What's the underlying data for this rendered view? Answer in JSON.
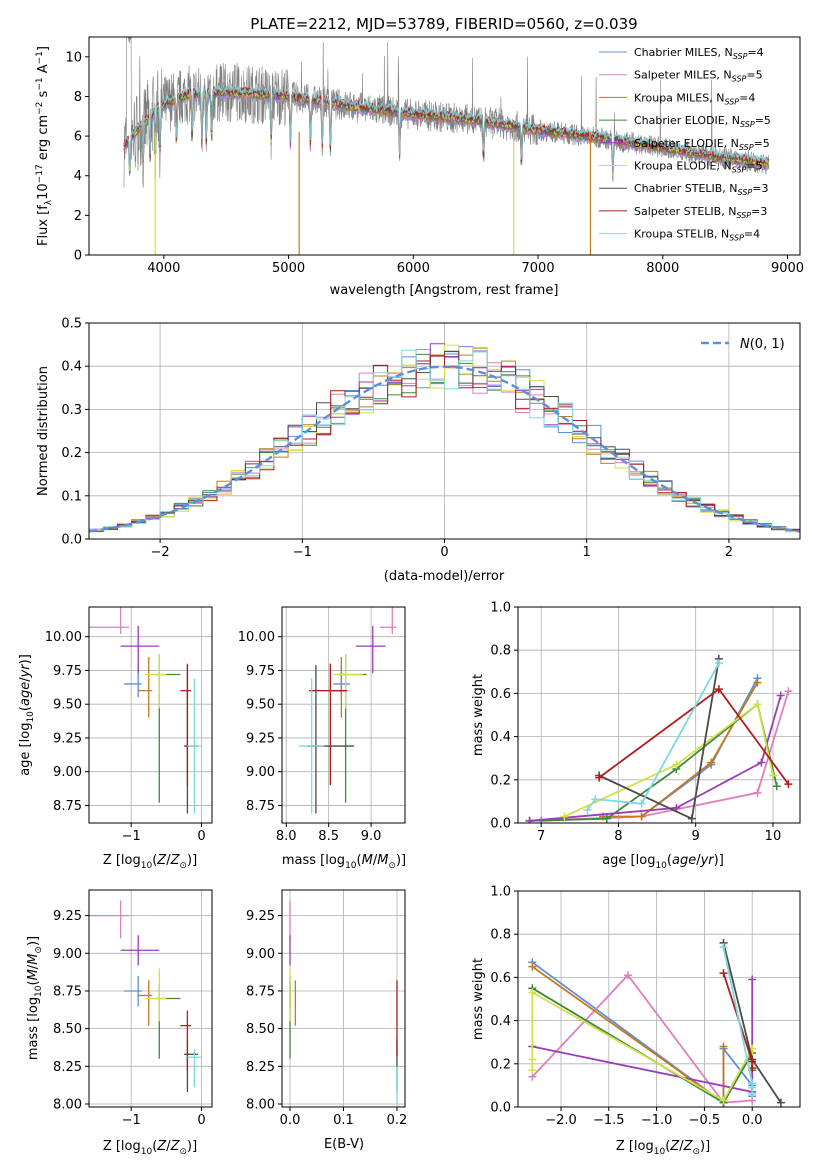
{
  "colors": {
    "Chabrier MILES": "#5b8fe0",
    "Salpeter MILES": "#e07fc0",
    "Kroupa MILES": "#c87a1a",
    "Chabrier ELODIE": "#3d8a3d",
    "Salpeter ELODIE": "#9a3db8",
    "Kroupa ELODIE": "#d4e04a",
    "Chabrier STELIB": "#4a4a4a",
    "Salpeter STELIB": "#b01c1c",
    "Kroupa STELIB": "#7fd8e0",
    "data": "#808080",
    "gauss": "#5b8fe0",
    "errs": [
      "#5b8fe0",
      "#e07fc0",
      "#c87a1a",
      "#3d8a3d",
      "#9a3db8",
      "#d4e04a",
      "#4a4a4a",
      "#b01c1c",
      "#7fd8e0"
    ]
  },
  "chart_data": [
    {
      "type": "line",
      "title": "PLATE=2212, MJD=53789, FIBERID=0560, z=0.039",
      "xlabel": "wavelength [Angstrom, rest frame]",
      "ylabel_tex": "Flux [f_λ 10^-17 erg cm^-2 s^-1 A^-1]",
      "xlim": [
        3400,
        9100
      ],
      "ylim": [
        0,
        11
      ],
      "xticks": [
        4000,
        5000,
        6000,
        7000,
        8000,
        9000
      ],
      "yticks": [
        0,
        2,
        4,
        6,
        8,
        10
      ],
      "legend": [
        {
          "model": "Chabrier MILES",
          "nssp": "4"
        },
        {
          "model": "Salpeter MILES",
          "nssp": "5"
        },
        {
          "model": "Kroupa MILES",
          "nssp": "4"
        },
        {
          "model": "Chabrier ELODIE",
          "nssp": "5"
        },
        {
          "model": "Salpeter ELODIE",
          "nssp": "5"
        },
        {
          "model": "Kroupa ELODIE",
          "nssp": "5"
        },
        {
          "model": "Chabrier STELIB",
          "nssp": "3"
        },
        {
          "model": "Salpeter STELIB",
          "nssp": "3"
        },
        {
          "model": "Kroupa STELIB",
          "nssp": "4"
        }
      ],
      "legend_pos": "upper-right",
      "continuum": [
        [
          3680,
          5.5
        ],
        [
          3800,
          6.4
        ],
        [
          4000,
          7.6
        ],
        [
          4200,
          8.1
        ],
        [
          4500,
          8.2
        ],
        [
          5000,
          8.0
        ],
        [
          5500,
          7.5
        ],
        [
          6000,
          7.1
        ],
        [
          6500,
          6.8
        ],
        [
          7000,
          6.3
        ],
        [
          7500,
          5.9
        ],
        [
          8000,
          5.4
        ],
        [
          8500,
          4.9
        ],
        [
          8850,
          4.6
        ]
      ]
    },
    {
      "type": "histogram",
      "xlabel": "(data-model)/error",
      "ylabel": "Normed distribution",
      "xlim": [
        -2.5,
        2.5
      ],
      "ylim": [
        0,
        0.5
      ],
      "xticks": [
        -2,
        -1,
        0,
        1,
        2
      ],
      "yticks": [
        0.0,
        0.1,
        0.2,
        0.3,
        0.4,
        0.5
      ],
      "bin_width": 0.1,
      "legend": "N(0,1)",
      "legend_pos": "upper-right"
    },
    {
      "type": "errorbar",
      "xlabel": "Z [log10(Z/Z⊙)]",
      "ylabel": "age [log10(age/yr)]",
      "xlim": [
        -1.6,
        0.15
      ],
      "ylim": [
        8.62,
        10.22
      ],
      "xticks": [
        -1,
        0
      ],
      "yticks": [
        8.75,
        9.0,
        9.25,
        9.5,
        9.75,
        10.0
      ],
      "points": [
        [
          -0.9,
          9.65,
          0.2,
          0.05,
          0.1,
          0.15
        ],
        [
          -1.15,
          10.07,
          0.45,
          0.12,
          0.05,
          0.25
        ],
        [
          -0.75,
          9.6,
          0.15,
          0.05,
          0.2,
          0.25
        ],
        [
          -0.6,
          9.72,
          0.05,
          0.3,
          0.95,
          0.15
        ],
        [
          -0.9,
          9.93,
          0.25,
          0.3,
          0.2,
          0.15
        ],
        [
          -0.6,
          9.72,
          0.2,
          0.1,
          0.25,
          0.15
        ],
        [
          -0.2,
          9.19,
          0.05,
          0.15,
          0.5,
          0.6
        ],
        [
          -0.2,
          9.6,
          0.1,
          0.05,
          0.7,
          0.2
        ],
        [
          -0.1,
          9.19,
          0.1,
          0.1,
          0.5,
          0.5
        ]
      ]
    },
    {
      "type": "errorbar",
      "xlabel": "mass [log10(M/M⊙)]",
      "xlim": [
        7.95,
        9.4
      ],
      "ylim": [
        8.62,
        10.22
      ],
      "xticks": [
        8.0,
        8.5,
        9.0
      ],
      "yticks": [
        8.75,
        9.0,
        9.25,
        9.5,
        9.75,
        10.0
      ],
      "points": [
        [
          8.65,
          9.65,
          0.1,
          0.1,
          0.1,
          0.15
        ],
        [
          9.25,
          10.07,
          0.15,
          0.05,
          0.05,
          0.25
        ],
        [
          8.65,
          9.6,
          0.1,
          0.05,
          0.2,
          0.25
        ],
        [
          8.7,
          9.72,
          0.1,
          0.25,
          0.95,
          0.15
        ],
        [
          9.02,
          9.93,
          0.2,
          0.15,
          0.2,
          0.15
        ],
        [
          8.7,
          9.72,
          0.15,
          0.2,
          0.25,
          0.15
        ],
        [
          8.35,
          9.19,
          0.1,
          0.45,
          0.5,
          0.6
        ],
        [
          8.52,
          9.6,
          0.25,
          0.2,
          0.7,
          0.2
        ],
        [
          8.3,
          9.19,
          0.15,
          0.15,
          0.5,
          0.5
        ]
      ]
    },
    {
      "type": "line",
      "xlabel": "age [log10(age/yr)]",
      "ylabel": "mass weight",
      "xlim": [
        6.7,
        10.35
      ],
      "ylim": [
        0,
        1
      ],
      "xticks": [
        7,
        8,
        9,
        10
      ],
      "yticks": [
        0.0,
        0.2,
        0.4,
        0.6,
        0.8,
        1.0
      ],
      "series": [
        {
          "model": "Chabrier MILES",
          "points": [
            [
              7.0,
              0.01
            ],
            [
              8.3,
              0.03
            ],
            [
              9.2,
              0.27
            ],
            [
              9.8,
              0.67
            ]
          ]
        },
        {
          "model": "Salpeter MILES",
          "points": [
            [
              6.85,
              0.01
            ],
            [
              8.3,
              0.03
            ],
            [
              9.8,
              0.14
            ],
            [
              10.2,
              0.61
            ]
          ]
        },
        {
          "model": "Kroupa MILES",
          "points": [
            [
              7.8,
              0.03
            ],
            [
              8.3,
              0.03
            ],
            [
              9.2,
              0.28
            ],
            [
              9.8,
              0.65
            ]
          ]
        },
        {
          "model": "Chabrier ELODIE",
          "points": [
            [
              6.85,
              0.01
            ],
            [
              7.85,
              0.02
            ],
            [
              8.75,
              0.25
            ],
            [
              9.8,
              0.55
            ],
            [
              10.05,
              0.17
            ]
          ]
        },
        {
          "model": "Salpeter ELODIE",
          "points": [
            [
              6.85,
              0.01
            ],
            [
              8.75,
              0.07
            ],
            [
              9.85,
              0.28
            ],
            [
              10.1,
              0.59
            ]
          ]
        },
        {
          "model": "Kroupa ELODIE",
          "points": [
            [
              7.3,
              0.03
            ],
            [
              8.75,
              0.27
            ],
            [
              9.8,
              0.55
            ],
            [
              10.0,
              0.22
            ]
          ]
        },
        {
          "model": "Chabrier STELIB",
          "points": [
            [
              7.75,
              0.22
            ],
            [
              8.95,
              0.02
            ],
            [
              9.3,
              0.76
            ]
          ]
        },
        {
          "model": "Salpeter STELIB",
          "points": [
            [
              7.75,
              0.21
            ],
            [
              9.3,
              0.62
            ],
            [
              10.2,
              0.18
            ]
          ]
        },
        {
          "model": "Kroupa STELIB",
          "points": [
            [
              7.6,
              0.06
            ],
            [
              7.7,
              0.11
            ],
            [
              8.3,
              0.09
            ],
            [
              9.3,
              0.74
            ]
          ]
        }
      ]
    },
    {
      "type": "errorbar",
      "xlabel": "Z [log10(Z/Z⊙)]",
      "ylabel": "mass [log10(M/M⊙)]",
      "xlim": [
        -1.6,
        0.15
      ],
      "ylim": [
        7.98,
        9.42
      ],
      "xticks": [
        -1,
        0
      ],
      "yticks": [
        8.0,
        8.25,
        8.5,
        8.75,
        9.0,
        9.25
      ],
      "points": [
        [
          -0.9,
          8.75,
          0.2,
          0.05,
          0.1,
          0.1
        ],
        [
          -1.15,
          9.25,
          0.45,
          0.12,
          0.15,
          0.1
        ],
        [
          -0.75,
          8.72,
          0.15,
          0.05,
          0.2,
          0.1
        ],
        [
          -0.6,
          8.7,
          0.05,
          0.3,
          0.4,
          0.1
        ],
        [
          -0.9,
          9.02,
          0.25,
          0.3,
          0.1,
          0.1
        ],
        [
          -0.6,
          8.7,
          0.2,
          0.1,
          0.15,
          0.2
        ],
        [
          -0.2,
          8.33,
          0.05,
          0.15,
          0.25,
          0.1
        ],
        [
          -0.2,
          8.52,
          0.1,
          0.05,
          0.3,
          0.1
        ],
        [
          -0.1,
          8.31,
          0.1,
          0.1,
          0.2,
          0.05
        ]
      ]
    },
    {
      "type": "errorbar",
      "xlabel": "E(B-V)",
      "xlim": [
        -0.015,
        0.215
      ],
      "ylim": [
        7.98,
        9.42
      ],
      "xticks": [
        0.0,
        0.1,
        0.2
      ],
      "yticks": [
        8.0,
        8.25,
        8.5,
        8.75,
        9.0,
        9.25
      ],
      "points": [
        [
          0.0,
          8.75,
          0.0,
          0.0,
          0.1,
          0.1
        ],
        [
          0.0,
          9.25,
          0.0,
          0.0,
          0.15,
          0.1
        ],
        [
          0.01,
          8.72,
          0.0,
          0.0,
          0.2,
          0.1
        ],
        [
          0.0,
          8.7,
          0.0,
          0.0,
          0.4,
          0.1
        ],
        [
          0.0,
          9.02,
          0.0,
          0.0,
          0.1,
          0.1
        ],
        [
          0.0,
          8.7,
          0.0,
          0.0,
          0.15,
          0.2
        ],
        [
          0.2,
          8.33,
          0.0,
          0.0,
          0.25,
          0.1
        ],
        [
          0.2,
          8.62,
          0.0,
          0.0,
          0.3,
          0.2
        ],
        [
          0.2,
          8.2,
          0.0,
          0.0,
          0.2,
          0.05
        ]
      ]
    },
    {
      "type": "line",
      "xlabel": "Z [log10(Z/Z⊙)]",
      "ylabel": "mass weight",
      "xlim": [
        -2.45,
        0.5
      ],
      "ylim": [
        0,
        1
      ],
      "xticks": [
        -2.0,
        -1.5,
        -1.0,
        -0.5,
        0.0
      ],
      "yticks": [
        0.0,
        0.2,
        0.4,
        0.6,
        0.8,
        1.0
      ],
      "series": [
        {
          "model": "Chabrier MILES",
          "points": [
            [
              -2.3,
              0.67
            ],
            [
              -0.3,
              0.02
            ],
            [
              -0.3,
              0.27
            ],
            [
              0.0,
              0.1
            ],
            [
              0.0,
              0.05
            ]
          ]
        },
        {
          "model": "Salpeter MILES",
          "points": [
            [
              -2.3,
              0.14
            ],
            [
              -1.3,
              0.61
            ],
            [
              -0.3,
              0.02
            ],
            [
              0.0,
              0.03
            ]
          ]
        },
        {
          "model": "Kroupa MILES",
          "points": [
            [
              -2.3,
              0.65
            ],
            [
              -0.3,
              0.02
            ],
            [
              -0.3,
              0.28
            ]
          ]
        },
        {
          "model": "Chabrier ELODIE",
          "points": [
            [
              -2.3,
              0.55
            ],
            [
              -0.3,
              0.02
            ],
            [
              0.0,
              0.25
            ],
            [
              0.0,
              0.17
            ]
          ]
        },
        {
          "model": "Salpeter ELODIE",
          "points": [
            [
              -2.3,
              0.28
            ],
            [
              0.0,
              0.07
            ],
            [
              0.0,
              0.59
            ]
          ]
        },
        {
          "model": "Kroupa ELODIE",
          "points": [
            [
              -2.3,
              0.22
            ],
            [
              -2.3,
              0.17
            ],
            [
              -2.3,
              0.53
            ],
            [
              -0.3,
              0.03
            ],
            [
              0.0,
              0.27
            ],
            [
              0.0,
              0.22
            ]
          ]
        },
        {
          "model": "Chabrier STELIB",
          "points": [
            [
              -0.3,
              0.76
            ],
            [
              0.0,
              0.22
            ],
            [
              0.3,
              0.02
            ]
          ]
        },
        {
          "model": "Salpeter STELIB",
          "points": [
            [
              -0.3,
              0.62
            ],
            [
              0.0,
              0.21
            ],
            [
              0.0,
              0.18
            ]
          ]
        },
        {
          "model": "Kroupa STELIB",
          "points": [
            [
              -0.3,
              0.74
            ],
            [
              0.0,
              0.11
            ],
            [
              0.0,
              0.09
            ],
            [
              0.0,
              0.06
            ]
          ]
        }
      ]
    }
  ]
}
